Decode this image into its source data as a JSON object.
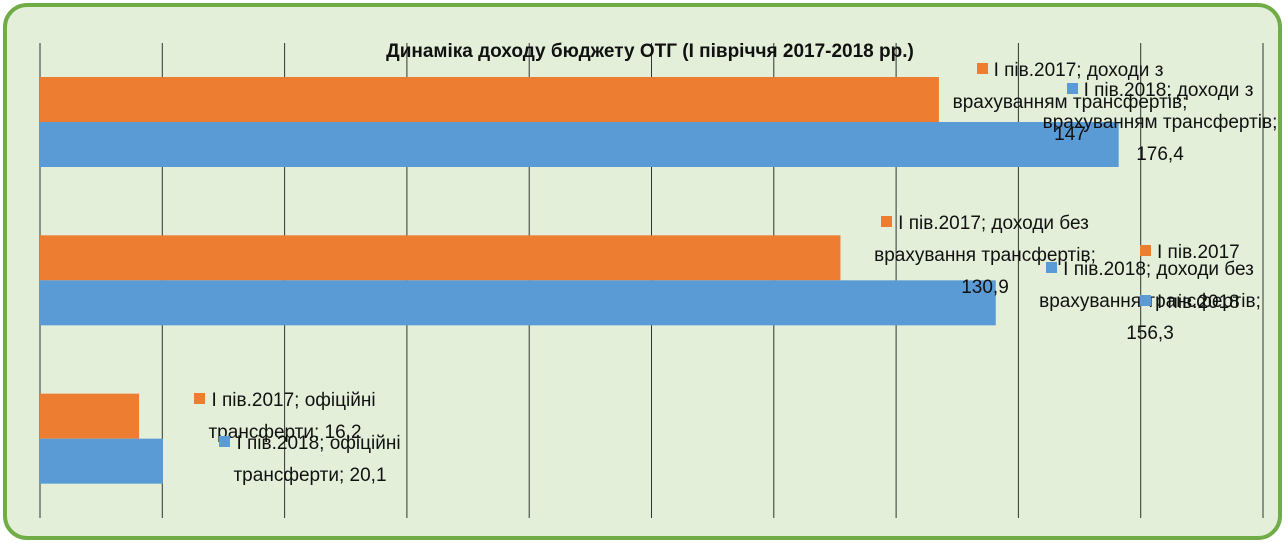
{
  "chart_data": {
    "type": "barh",
    "title": "Динаміка доходу бюджету ОТГ (І півріччя 2017-2018 рр.)",
    "categories": [
      "доходи з врахуванням трансфертів",
      "доходи без врахування трансфертів",
      "офіційні трансферти"
    ],
    "series": [
      {
        "name": "І пів.2017",
        "color": "#ED7D31",
        "values": [
          147,
          130.9,
          16.2
        ],
        "value_labels": [
          "І пів.2017; доходи з врахуванням трансфертів; 147",
          "І пів.2017; доходи без врахування трансфертів; 130,9",
          "І пів.2017; офіційні трансферти; 16,2"
        ]
      },
      {
        "name": "І пів.2018",
        "color": "#5B9BD5",
        "values": [
          176.4,
          156.3,
          20.1
        ],
        "value_labels": [
          "І пів.2018; доходи з врахуванням трансфертів; 176,4",
          "І пів.2018; доходи без врахування трансфертів; 156,3",
          "І пів.2018; офіційні трансферти; 20,1"
        ]
      }
    ],
    "xlim": [
      0,
      200
    ],
    "xticks": [
      0,
      20,
      40,
      60,
      80,
      100,
      120,
      140,
      160,
      180,
      200
    ],
    "grid": true,
    "legend": "right"
  }
}
